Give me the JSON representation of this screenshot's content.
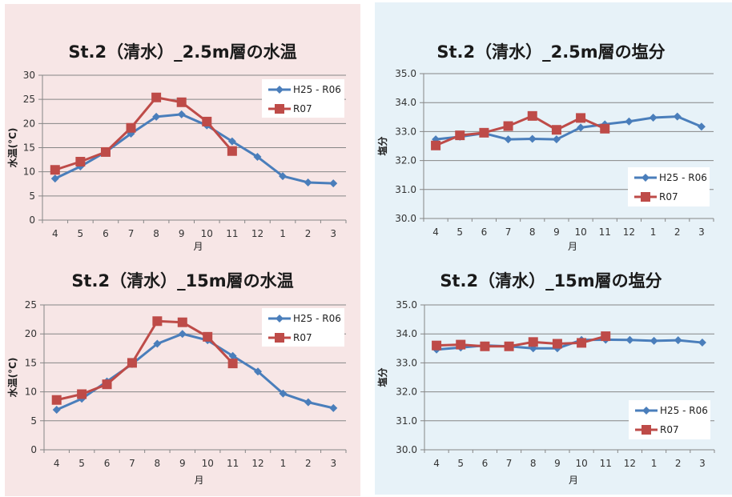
{
  "colors": {
    "series1": "#4a7ebb",
    "series2": "#be4b48",
    "grid": "#868686",
    "panel_temp": "#f7e6e6",
    "panel_salinity": "#e7f2f8"
  },
  "chart_data": [
    {
      "type": "line",
      "title": "St.2（清水）_2.5m層の水温",
      "xlabel": "月",
      "ylabel": "水温(°C)",
      "categories": [
        "4",
        "5",
        "6",
        "7",
        "8",
        "9",
        "10",
        "11",
        "12",
        "1",
        "2",
        "3"
      ],
      "ylim": [
        0,
        30
      ],
      "yticks": [
        "0",
        "5",
        "10",
        "15",
        "20",
        "25",
        "30"
      ],
      "ytick_values": [
        0,
        5,
        10,
        15,
        20,
        25,
        30
      ],
      "grid": true,
      "legend": "top-right",
      "series": [
        {
          "name": "H25 - R06",
          "marker": "diamond",
          "values": [
            8.6,
            11.1,
            14.1,
            17.9,
            21.4,
            21.9,
            19.6,
            16.3,
            13.1,
            9.1,
            7.8,
            7.6
          ]
        },
        {
          "name": "R07",
          "marker": "square",
          "values": [
            10.4,
            12.1,
            14.1,
            19.1,
            25.4,
            24.4,
            20.4,
            14.3,
            null,
            null,
            null,
            null
          ]
        }
      ]
    },
    {
      "type": "line",
      "title": "St.2（清水）_2.5m層の塩分",
      "xlabel": "月",
      "ylabel": "塩分",
      "categories": [
        "4",
        "5",
        "6",
        "7",
        "8",
        "9",
        "10",
        "11",
        "12",
        "1",
        "2",
        "3"
      ],
      "ylim": [
        30,
        35
      ],
      "yticks": [
        "30.0",
        "31.0",
        "32.0",
        "33.0",
        "34.0",
        "35.0"
      ],
      "ytick_values": [
        30,
        31,
        32,
        33,
        34,
        35
      ],
      "grid": true,
      "legend": "bottom-right",
      "series": [
        {
          "name": "H25 - R06",
          "marker": "diamond",
          "values": [
            32.73,
            32.82,
            32.94,
            32.73,
            32.75,
            32.73,
            33.14,
            33.25,
            33.35,
            33.48,
            33.52,
            33.17
          ]
        },
        {
          "name": "R07",
          "marker": "square",
          "values": [
            32.52,
            32.87,
            32.96,
            33.19,
            33.54,
            33.06,
            33.47,
            33.1,
            null,
            null,
            null,
            null
          ]
        }
      ]
    },
    {
      "type": "line",
      "title": "St.2（清水）_15m層の水温",
      "xlabel": "月",
      "ylabel": "水温(°C)",
      "categories": [
        "4",
        "5",
        "6",
        "7",
        "8",
        "9",
        "10",
        "11",
        "12",
        "1",
        "2",
        "3"
      ],
      "ylim": [
        0,
        25
      ],
      "yticks": [
        "0",
        "5",
        "10",
        "15",
        "20",
        "25"
      ],
      "ytick_values": [
        0,
        5,
        10,
        15,
        20,
        25
      ],
      "grid": true,
      "legend": "top-right",
      "series": [
        {
          "name": "H25 - R06",
          "marker": "diamond",
          "values": [
            6.9,
            8.8,
            11.8,
            14.8,
            18.3,
            20.0,
            18.9,
            16.2,
            13.5,
            9.7,
            8.2,
            7.2
          ]
        },
        {
          "name": "R07",
          "marker": "square",
          "values": [
            8.6,
            9.6,
            11.3,
            15.0,
            22.2,
            22.0,
            19.5,
            14.9,
            null,
            null,
            null,
            null
          ]
        }
      ]
    },
    {
      "type": "line",
      "title": "St.2（清水）_15m層の塩分",
      "xlabel": "月",
      "ylabel": "塩分",
      "categories": [
        "4",
        "5",
        "6",
        "7",
        "8",
        "9",
        "10",
        "11",
        "12",
        "1",
        "2",
        "3"
      ],
      "ylim": [
        30,
        35
      ],
      "yticks": [
        "30.0",
        "31.0",
        "32.0",
        "33.0",
        "34.0",
        "35.0"
      ],
      "ytick_values": [
        30,
        31,
        32,
        33,
        34,
        35
      ],
      "grid": true,
      "legend": "bottom-right",
      "series": [
        {
          "name": "H25 - R06",
          "marker": "diamond",
          "values": [
            33.46,
            33.53,
            33.6,
            33.57,
            33.5,
            33.5,
            33.79,
            33.8,
            33.79,
            33.76,
            33.78,
            33.7
          ]
        },
        {
          "name": "R07",
          "marker": "square",
          "values": [
            33.6,
            33.63,
            33.57,
            33.57,
            33.72,
            33.66,
            33.69,
            33.92,
            null,
            null,
            null,
            null
          ]
        }
      ]
    }
  ]
}
